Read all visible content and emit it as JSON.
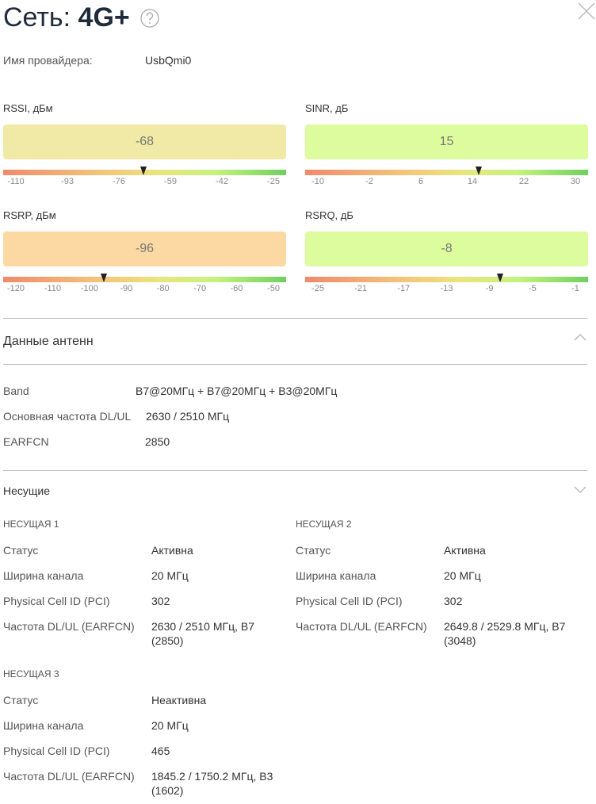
{
  "header": {
    "title_prefix": "Сеть:",
    "title_value": "4G+"
  },
  "provider": {
    "label": "Имя провайдера:",
    "value": "UsbQmi0"
  },
  "gauges": [
    {
      "label": "RSSI, дБм",
      "value": -68,
      "color": "#f1eaa6",
      "ticks": [
        -110,
        -93,
        -76,
        -59,
        -42,
        -25
      ]
    },
    {
      "label": "SINR, дБ",
      "value": 15,
      "color": "#dcfc9e",
      "ticks": [
        -10,
        -2,
        6,
        14,
        22,
        30
      ]
    },
    {
      "label": "RSRP, дБм",
      "value": -96,
      "color": "#fcd9a2",
      "ticks": [
        -120,
        -110,
        -100,
        -90,
        -80,
        -70,
        -60,
        -50
      ]
    },
    {
      "label": "RSRQ, дБ",
      "value": -8,
      "color": "#dcfc9e",
      "ticks": [
        -25,
        -21,
        -17,
        -13,
        -9,
        -5,
        -1
      ]
    }
  ],
  "antenna": {
    "title": "Данные антенн",
    "rows": [
      [
        "Band",
        "B7@20МГц + B7@20МГц + B3@20МГц"
      ],
      [
        "Основная частота DL/UL",
        "2630 / 2510 МГц"
      ],
      [
        "EARFCN",
        "2850"
      ]
    ]
  },
  "carriers": {
    "title": "Несущие",
    "items": [
      {
        "title": "НЕСУЩАЯ 1",
        "rows": [
          [
            "Статус",
            "Активна"
          ],
          [
            "Ширина канала",
            "20 МГц"
          ],
          [
            "Physical Cell ID (PCI)",
            "302"
          ],
          [
            "Частота DL/UL (EARFCN)",
            "2630 / 2510 МГц, B7 (2850)"
          ]
        ]
      },
      {
        "title": "НЕСУЩАЯ 2",
        "rows": [
          [
            "Статус",
            "Активна"
          ],
          [
            "Ширина канала",
            "20 МГц"
          ],
          [
            "Physical Cell ID (PCI)",
            "302"
          ],
          [
            "Частота DL/UL (EARFCN)",
            "2649.8 / 2529.8 МГц, B7 (3048)"
          ]
        ]
      },
      {
        "title": "НЕСУЩАЯ 3",
        "rows": [
          [
            "Статус",
            "Неактивна"
          ],
          [
            "Ширина канала",
            "20 МГц"
          ],
          [
            "Physical Cell ID (PCI)",
            "465"
          ],
          [
            "Частота DL/UL (EARFCN)",
            "1845.2 / 1750.2 МГц, B3 (1602)"
          ]
        ]
      }
    ]
  }
}
